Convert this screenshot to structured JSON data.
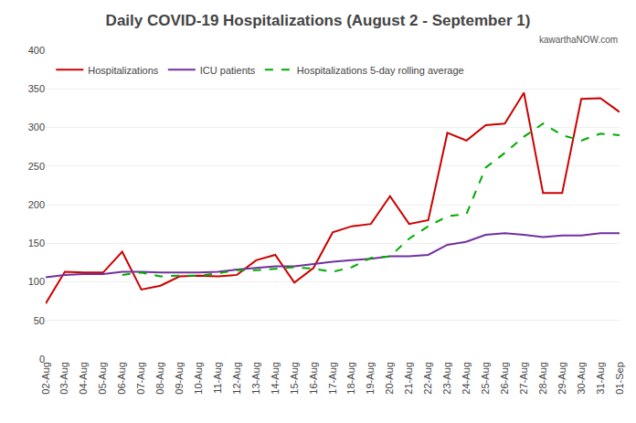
{
  "chart_data": {
    "type": "line",
    "title": "Daily COVID-19 Hospitalizations (August 2 - September 1)",
    "annotations": [
      "kawarthaNOW.com"
    ],
    "categories": [
      "02-Aug",
      "03-Aug",
      "04-Aug",
      "05-Aug",
      "06-Aug",
      "07-Aug",
      "08-Aug",
      "09-Aug",
      "10-Aug",
      "11-Aug",
      "12-Aug",
      "13-Aug",
      "14-Aug",
      "15-Aug",
      "16-Aug",
      "17-Aug",
      "18-Aug",
      "19-Aug",
      "20-Aug",
      "21-Aug",
      "22-Aug",
      "23-Aug",
      "24-Aug",
      "25-Aug",
      "26-Aug",
      "27-Aug",
      "28-Aug",
      "29-Aug",
      "30-Aug",
      "31-Aug",
      "01-Sep"
    ],
    "series": [
      {
        "name": "Hospitalizations",
        "color": "#cc0000",
        "line_style": "solid",
        "values": [
          72,
          113,
          112,
          112,
          139,
          90,
          95,
          107,
          108,
          107,
          109,
          128,
          135,
          99,
          118,
          164,
          172,
          175,
          211,
          175,
          180,
          293,
          283,
          303,
          305,
          345,
          215,
          215,
          337,
          338,
          320
        ]
      },
      {
        "name": "ICU patients",
        "color": "#7030a0",
        "line_style": "solid",
        "values": [
          106,
          109,
          110,
          110,
          113,
          113,
          112,
          112,
          112,
          113,
          116,
          118,
          120,
          120,
          123,
          126,
          128,
          130,
          133,
          133,
          135,
          148,
          152,
          161,
          163,
          161,
          158,
          160,
          160,
          163,
          163
        ]
      },
      {
        "name": "Hospitalizations 5-day rolling average",
        "color": "#00aa00",
        "line_style": "dashed",
        "values": [
          null,
          null,
          null,
          null,
          109,
          112,
          107,
          108,
          108,
          111,
          115,
          115,
          117,
          119,
          117,
          113,
          119,
          131,
          133,
          156,
          172,
          185,
          188,
          248,
          267,
          288,
          305,
          290,
          283,
          292,
          290
        ]
      }
    ],
    "ylim": [
      0,
      400
    ],
    "yticks": [
      0,
      50,
      100,
      150,
      200,
      250,
      300,
      350,
      400
    ],
    "grid": true,
    "legend": "upper left"
  }
}
